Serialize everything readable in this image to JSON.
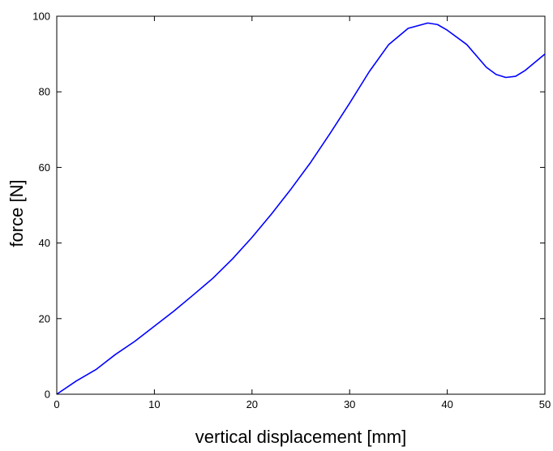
{
  "chart_data": {
    "type": "line",
    "title": "",
    "xlabel": "vertical displacement [mm]",
    "ylabel": "force  [N]",
    "xlim": [
      0,
      50
    ],
    "ylim": [
      0,
      100
    ],
    "grid": false,
    "legend": "none",
    "x_ticks": [
      "0",
      "10",
      "20",
      "30",
      "40",
      "50"
    ],
    "y_ticks": [
      "0",
      "20",
      "40",
      "60",
      "80",
      "100"
    ],
    "series": [
      {
        "color": "#0000ff",
        "x": [
          0,
          2,
          4,
          6,
          8,
          10,
          12,
          14,
          16,
          18,
          20,
          22,
          24,
          26,
          28,
          30,
          32,
          34,
          36,
          38,
          39,
          40,
          42,
          44,
          45,
          46,
          47,
          48,
          50
        ],
        "y": [
          0,
          3.5,
          6.5,
          10.5,
          14,
          18,
          22,
          26.3,
          30.7,
          35.8,
          41.5,
          47.7,
          54.3,
          61.3,
          69,
          77,
          85.3,
          92.5,
          96.8,
          98.2,
          97.8,
          96.3,
          92.5,
          86.5,
          84.6,
          83.8,
          84.1,
          85.7,
          90
        ]
      }
    ]
  }
}
